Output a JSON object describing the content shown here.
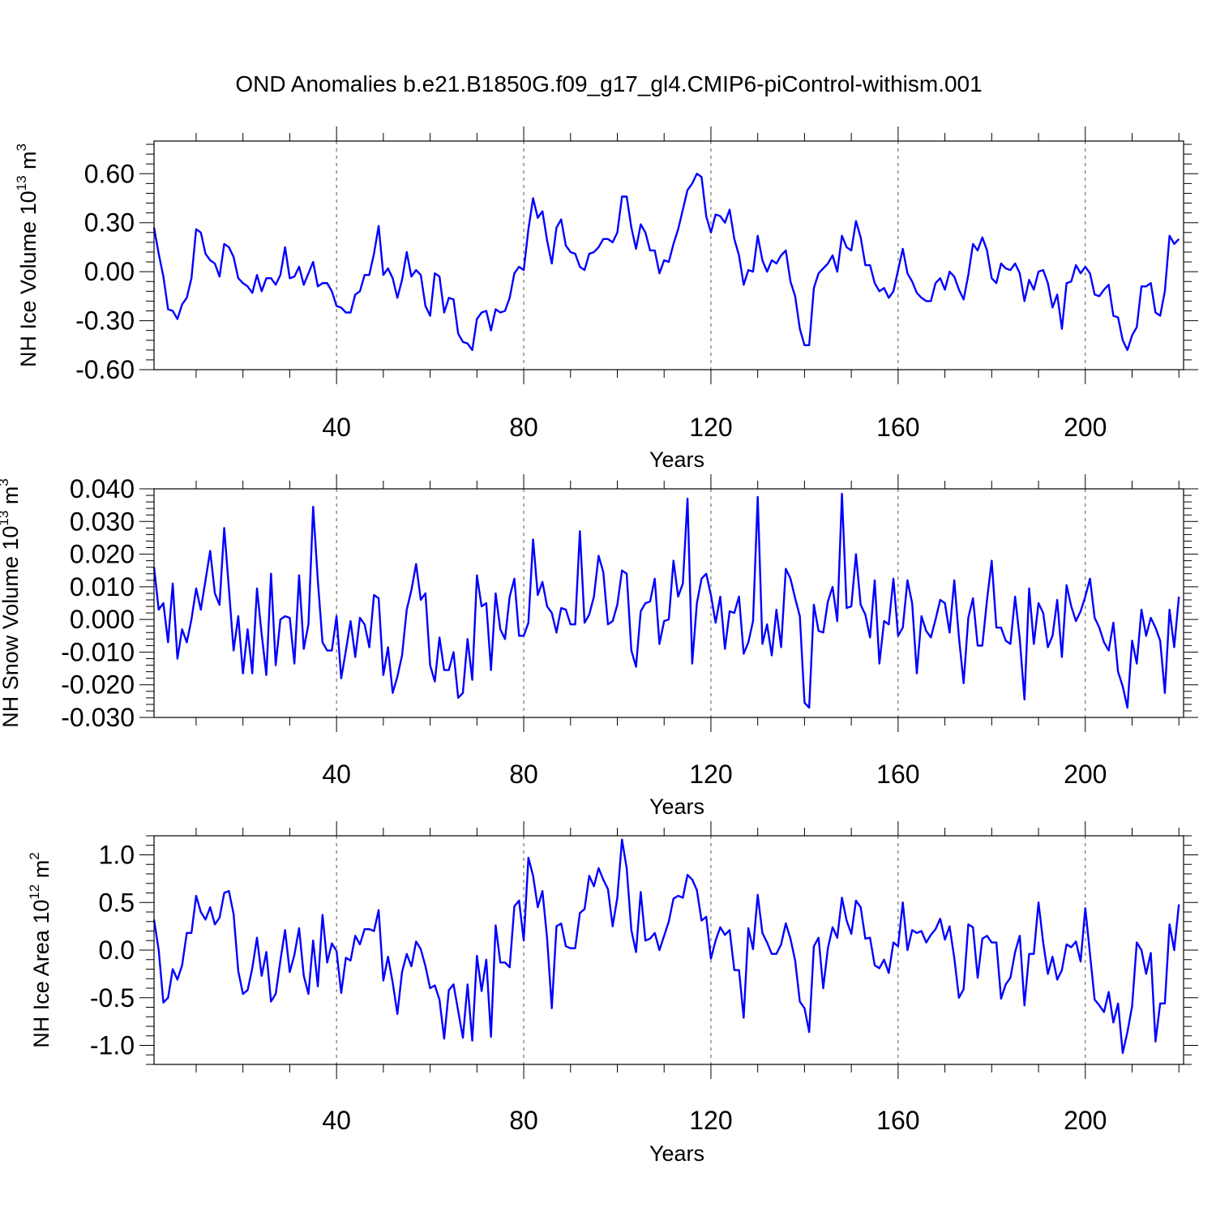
{
  "title": "OND Anomalies b.e21.B1850G.f09_g17_gl4.CMIP6-piControl-withism.001",
  "colors": {
    "line": "#0000ff",
    "axis": "#000000",
    "grid": "#555555"
  },
  "chart_data": [
    {
      "type": "line",
      "title": "OND Anomalies b.e21.B1850G.f09_g17_gl4.CMIP6-piControl-withism.001",
      "xlabel": "Years",
      "ylabel": {
        "base": "NH Ice Volume 10",
        "exp1": "13",
        "mid": " m",
        "exp2": "3"
      },
      "xlim": [
        1,
        221
      ],
      "ylim": [
        -0.6,
        0.8
      ],
      "xticks": [
        40,
        80,
        120,
        160,
        200
      ],
      "yticks": [
        -0.6,
        -0.3,
        0.0,
        0.3,
        0.6
      ],
      "ytick_labels": [
        "-0.60",
        "-0.30",
        "0.00",
        "0.30",
        "0.60"
      ],
      "grid": "dashed vertical at x ticks",
      "series": [
        {
          "values": [
            0.27,
            0.11,
            -0.03,
            -0.23,
            -0.24,
            -0.29,
            -0.2,
            -0.16,
            -0.04,
            0.26,
            0.24,
            0.11,
            0.07,
            0.05,
            -0.03,
            0.17,
            0.15,
            0.09,
            -0.04,
            -0.07,
            -0.09,
            -0.13,
            -0.02,
            -0.12,
            -0.04,
            -0.04,
            -0.08,
            -0.02,
            0.15,
            -0.04,
            -0.03,
            0.03,
            -0.08,
            -0.01,
            0.06,
            -0.09,
            -0.07,
            -0.07,
            -0.12,
            -0.21,
            -0.22,
            -0.25,
            -0.25,
            -0.14,
            -0.12,
            -0.02,
            -0.02,
            0.11,
            0.28,
            -0.02,
            0.02,
            -0.04,
            -0.16,
            -0.05,
            0.12,
            -0.03,
            0.01,
            -0.02,
            -0.21,
            -0.27,
            -0.01,
            -0.03,
            -0.25,
            -0.16,
            -0.17,
            -0.38,
            -0.43,
            -0.44,
            -0.48,
            -0.29,
            -0.25,
            -0.24,
            -0.36,
            -0.23,
            -0.25,
            -0.24,
            -0.16,
            -0.01,
            0.03,
            0.01,
            0.26,
            0.45,
            0.33,
            0.37,
            0.19,
            0.05,
            0.27,
            0.32,
            0.16,
            0.12,
            0.11,
            0.03,
            0.01,
            0.11,
            0.12,
            0.15,
            0.2,
            0.2,
            0.18,
            0.24,
            0.46,
            0.46,
            0.27,
            0.14,
            0.29,
            0.24,
            0.13,
            0.13,
            -0.01,
            0.07,
            0.06,
            0.17,
            0.26,
            0.38,
            0.5,
            0.54,
            0.6,
            0.58,
            0.34,
            0.24,
            0.35,
            0.34,
            0.3,
            0.38,
            0.2,
            0.1,
            -0.08,
            0.01,
            0.0,
            0.22,
            0.07,
            0.0,
            0.07,
            0.05,
            0.1,
            0.13,
            -0.06,
            -0.15,
            -0.35,
            -0.45,
            -0.45,
            -0.1,
            -0.01,
            0.02,
            0.05,
            0.1,
            0.0,
            0.22,
            0.15,
            0.13,
            0.31,
            0.21,
            0.04,
            0.04,
            -0.07,
            -0.12,
            -0.1,
            -0.16,
            -0.12,
            0.01,
            0.14,
            -0.01,
            -0.06,
            -0.13,
            -0.16,
            -0.18,
            -0.18,
            -0.07,
            -0.04,
            -0.11,
            0.0,
            -0.03,
            -0.11,
            -0.17,
            -0.02,
            0.17,
            0.13,
            0.21,
            0.13,
            -0.04,
            -0.07,
            0.05,
            0.02,
            0.01,
            0.05,
            -0.01,
            -0.18,
            -0.05,
            -0.11,
            0.0,
            0.01,
            -0.07,
            -0.22,
            -0.14,
            -0.35,
            -0.07,
            -0.06,
            0.04,
            -0.01,
            0.03,
            -0.01,
            -0.14,
            -0.15,
            -0.11,
            -0.08,
            -0.27,
            -0.28,
            -0.42,
            -0.48,
            -0.39,
            -0.34,
            -0.09,
            -0.09,
            -0.07,
            -0.25,
            -0.27,
            -0.12,
            0.22,
            0.17,
            0.2
          ]
        }
      ]
    },
    {
      "type": "line",
      "xlabel": "Years",
      "ylabel": {
        "base": "NH Snow Volume 10",
        "exp1": "13",
        "mid": " m",
        "exp2": "3"
      },
      "xlim": [
        1,
        221
      ],
      "ylim": [
        -0.03,
        0.04
      ],
      "xticks": [
        40,
        80,
        120,
        160,
        200
      ],
      "yticks": [
        -0.03,
        -0.02,
        -0.01,
        0.0,
        0.01,
        0.02,
        0.03,
        0.04
      ],
      "ytick_labels": [
        "-0.030",
        "-0.020",
        "-0.010",
        "0.000",
        "0.010",
        "0.020",
        "0.030",
        "0.040"
      ],
      "grid": "dashed vertical at x ticks",
      "series": [
        {
          "values": [
            0.016,
            0.003,
            0.005,
            -0.007,
            0.011,
            -0.012,
            -0.003,
            -0.007,
            0.0,
            0.0095,
            0.003,
            0.012,
            0.021,
            0.008,
            0.0045,
            0.028,
            0.0095,
            -0.0095,
            0.001,
            -0.0165,
            -0.003,
            -0.0165,
            0.0095,
            -0.0045,
            -0.017,
            0.014,
            -0.014,
            0.0,
            0.001,
            0.0005,
            -0.0135,
            0.0135,
            -0.009,
            -0.0015,
            0.0345,
            0.012,
            -0.007,
            -0.0095,
            -0.0095,
            0.001,
            -0.018,
            -0.0095,
            -0.0005,
            -0.0115,
            0.0005,
            -0.0015,
            -0.0085,
            0.0075,
            0.0065,
            -0.017,
            -0.0085,
            -0.0225,
            -0.0175,
            -0.011,
            0.003,
            0.009,
            0.017,
            0.006,
            0.008,
            -0.014,
            -0.019,
            -0.0055,
            -0.0155,
            -0.0155,
            -0.01,
            -0.024,
            -0.0225,
            -0.006,
            -0.0185,
            0.0135,
            0.004,
            0.005,
            -0.0155,
            0.008,
            -0.003,
            -0.006,
            0.007,
            0.0125,
            -0.005,
            -0.005,
            -0.001,
            0.0245,
            0.0075,
            0.0115,
            0.004,
            0.002,
            -0.004,
            0.0035,
            0.003,
            -0.0015,
            -0.0015,
            0.027,
            -0.001,
            0.0015,
            0.007,
            0.0195,
            0.0145,
            -0.0015,
            -0.0005,
            0.0045,
            0.015,
            0.014,
            -0.0095,
            -0.0145,
            0.0025,
            0.005,
            0.0055,
            0.0125,
            -0.0075,
            -0.0005,
            0.0,
            0.018,
            0.007,
            0.011,
            0.037,
            -0.0135,
            0.005,
            0.0125,
            0.014,
            0.0075,
            -0.001,
            0.007,
            -0.009,
            0.0025,
            0.002,
            0.007,
            -0.0105,
            -0.007,
            -0.0005,
            0.0375,
            -0.0075,
            -0.0015,
            -0.011,
            0.003,
            -0.0085,
            0.0155,
            0.0125,
            0.0065,
            0.001,
            -0.0255,
            -0.027,
            0.0045,
            -0.0035,
            -0.004,
            0.0055,
            0.01,
            -0.0005,
            0.0385,
            0.0035,
            0.004,
            0.02,
            0.0045,
            0.0015,
            -0.0055,
            0.012,
            -0.0135,
            -0.0005,
            -0.0015,
            0.0125,
            -0.005,
            -0.0025,
            0.012,
            0.005,
            -0.0165,
            0.001,
            -0.0035,
            -0.0055,
            0.0,
            0.006,
            0.005,
            -0.004,
            0.012,
            -0.0055,
            -0.0195,
            0.0005,
            0.0065,
            -0.008,
            -0.008,
            0.006,
            0.018,
            -0.0025,
            -0.0025,
            -0.0065,
            -0.0075,
            0.007,
            -0.006,
            -0.0245,
            0.0095,
            -0.0075,
            0.005,
            0.002,
            -0.0085,
            -0.005,
            0.006,
            -0.0115,
            0.0105,
            0.004,
            -0.0005,
            0.0025,
            0.007,
            0.0125,
            0.0005,
            -0.0025,
            -0.007,
            -0.0095,
            -0.001,
            -0.016,
            -0.0205,
            -0.027,
            -0.0065,
            -0.0135,
            0.003,
            -0.005,
            0.0005,
            -0.0025,
            -0.0065,
            -0.0225,
            0.003,
            -0.0085,
            0.007
          ]
        }
      ]
    },
    {
      "type": "line",
      "xlabel": "Years",
      "ylabel": {
        "base": "NH Ice Area 10",
        "exp1": "12",
        "mid": " m",
        "exp2": "2"
      },
      "xlim": [
        1,
        221
      ],
      "ylim": [
        -1.2,
        1.2
      ],
      "xticks": [
        40,
        80,
        120,
        160,
        200
      ],
      "yticks": [
        -1.0,
        -0.5,
        0.0,
        0.5,
        1.0
      ],
      "ytick_labels": [
        "-1.0",
        "-0.5",
        "0.0",
        "0.5",
        "1.0"
      ],
      "grid": "dashed vertical at x ticks",
      "series": [
        {
          "values": [
            0.32,
            0.0,
            -0.55,
            -0.5,
            -0.2,
            -0.31,
            -0.16,
            0.18,
            0.18,
            0.57,
            0.4,
            0.32,
            0.45,
            0.27,
            0.34,
            0.6,
            0.62,
            0.38,
            -0.22,
            -0.46,
            -0.42,
            -0.19,
            0.13,
            -0.27,
            -0.02,
            -0.54,
            -0.46,
            -0.11,
            0.21,
            -0.23,
            -0.05,
            0.23,
            -0.27,
            -0.46,
            0.1,
            -0.38,
            0.37,
            -0.13,
            0.07,
            -0.01,
            -0.45,
            -0.08,
            -0.11,
            0.15,
            0.06,
            0.22,
            0.22,
            0.2,
            0.42,
            -0.32,
            -0.07,
            -0.34,
            -0.67,
            -0.23,
            -0.04,
            -0.17,
            0.09,
            0.01,
            -0.17,
            -0.4,
            -0.37,
            -0.52,
            -0.93,
            -0.42,
            -0.36,
            -0.64,
            -0.92,
            -0.36,
            -0.95,
            -0.06,
            -0.43,
            -0.1,
            -0.91,
            0.26,
            -0.13,
            -0.13,
            -0.18,
            0.46,
            0.52,
            0.1,
            0.97,
            0.78,
            0.45,
            0.62,
            0.12,
            -0.61,
            0.25,
            0.28,
            0.04,
            0.02,
            0.02,
            0.39,
            0.43,
            0.78,
            0.67,
            0.86,
            0.74,
            0.64,
            0.25,
            0.55,
            1.16,
            0.86,
            0.21,
            -0.02,
            0.61,
            0.1,
            0.12,
            0.18,
            0.0,
            0.15,
            0.3,
            0.54,
            0.57,
            0.55,
            0.79,
            0.74,
            0.63,
            0.31,
            0.35,
            -0.09,
            0.1,
            0.24,
            0.16,
            0.21,
            -0.21,
            -0.21,
            -0.71,
            0.23,
            0.01,
            0.58,
            0.18,
            0.08,
            -0.04,
            -0.04,
            0.06,
            0.28,
            0.12,
            -0.11,
            -0.54,
            -0.61,
            -0.86,
            0.04,
            0.13,
            -0.4,
            0.02,
            0.24,
            0.13,
            0.55,
            0.31,
            0.17,
            0.52,
            0.45,
            0.12,
            0.13,
            -0.16,
            -0.19,
            -0.1,
            -0.24,
            0.08,
            0.04,
            0.5,
            0.0,
            0.21,
            0.18,
            0.2,
            0.08,
            0.16,
            0.22,
            0.33,
            0.11,
            0.25,
            -0.08,
            -0.5,
            -0.41,
            0.27,
            0.24,
            -0.29,
            0.12,
            0.15,
            0.08,
            0.08,
            -0.51,
            -0.36,
            -0.29,
            -0.02,
            0.15,
            -0.58,
            -0.04,
            -0.04,
            0.5,
            0.08,
            -0.25,
            -0.07,
            -0.31,
            -0.21,
            0.06,
            0.03,
            0.09,
            -0.12,
            0.44,
            -0.04,
            -0.52,
            -0.58,
            -0.65,
            -0.44,
            -0.76,
            -0.56,
            -1.08,
            -0.86,
            -0.59,
            0.08,
            0.0,
            -0.25,
            -0.03,
            -0.96,
            -0.56,
            -0.56,
            0.27,
            0.0,
            0.48
          ]
        }
      ]
    }
  ]
}
